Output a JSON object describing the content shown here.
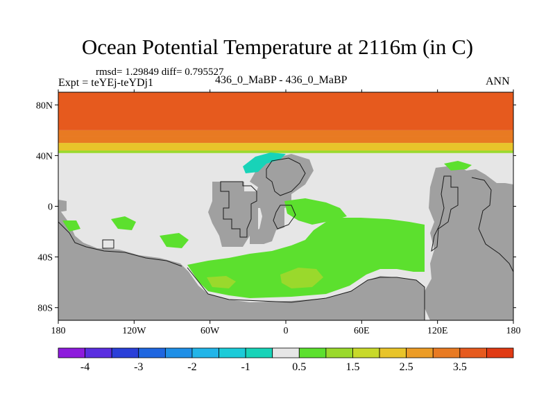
{
  "title": "Ocean Potential Temperature at 2116m (in C)",
  "stats_line": "rmsd= 1.29849 diff= 0.795527",
  "experiment": "Expt = teYEj-teYDj1",
  "center_label": "436_0_MaBP - 436_0_MaBP",
  "season": "ANN",
  "chart_data": {
    "type": "heatmap",
    "title": "Ocean Potential Temperature at 2116m (in C)",
    "projection": "cylindrical equidistant",
    "x_ticks": [
      {
        "value": -180,
        "label": "180"
      },
      {
        "value": -120,
        "label": "120W"
      },
      {
        "value": -60,
        "label": "60W"
      },
      {
        "value": 0,
        "label": "0"
      },
      {
        "value": 60,
        "label": "60E"
      },
      {
        "value": 120,
        "label": "120E"
      },
      {
        "value": 180,
        "label": "180"
      }
    ],
    "y_ticks": [
      {
        "value": 80,
        "label": "80N"
      },
      {
        "value": 40,
        "label": "40N"
      },
      {
        "value": 0,
        "label": "0"
      },
      {
        "value": -40,
        "label": "40S"
      },
      {
        "value": -80,
        "label": "80S"
      }
    ],
    "xlim": [
      -180,
      180
    ],
    "ylim": [
      -90,
      90
    ],
    "colorbar": {
      "levels": [
        -4.5,
        -4,
        -3.5,
        -3,
        -2.5,
        -2,
        -1.5,
        -1,
        -0.5,
        0.5,
        1,
        1.5,
        2,
        2.5,
        3,
        3.5,
        4
      ],
      "colors": [
        "#8d1bdc",
        "#5a2ee0",
        "#2a3fd8",
        "#1f66e0",
        "#1f8fe6",
        "#22b5e8",
        "#1ccbd8",
        "#18d3b8",
        "#e6e6e6",
        "#5ce02e",
        "#9ad92c",
        "#c8d92b",
        "#e8c42a",
        "#ec9c26",
        "#e87a22",
        "#e65a1e",
        "#e03a14"
      ],
      "labels": [
        {
          "value": -4,
          "label": "-4"
        },
        {
          "value": -3,
          "label": "-3"
        },
        {
          "value": -2,
          "label": "-2"
        },
        {
          "value": -1,
          "label": "-1"
        },
        {
          "value": 0.5,
          "label": "0.5"
        },
        {
          "value": 1.5,
          "label": "1.5"
        },
        {
          "value": 2.5,
          "label": "2.5"
        },
        {
          "value": 3.5,
          "label": "3.5"
        }
      ]
    },
    "features": {
      "ocean_default_value": 0,
      "land_color": "#a0a0a0",
      "northern_high_lat_bands": [
        {
          "lat_from": 42,
          "lat_to": 44,
          "value": 1.2
        },
        {
          "lat_from": 44,
          "lat_to": 50,
          "value": 2.2
        },
        {
          "lat_from": 50,
          "lat_to": 55,
          "value": 3.0
        },
        {
          "lat_from": 55,
          "lat_to": 60,
          "value": 3.3
        },
        {
          "lat_from": 60,
          "lat_to": 90,
          "value": 3.8
        }
      ],
      "southern_warm_region_value": 1.2,
      "southern_warmer_patches_value": 2.2,
      "cool_patch_value": -0.8
    }
  }
}
